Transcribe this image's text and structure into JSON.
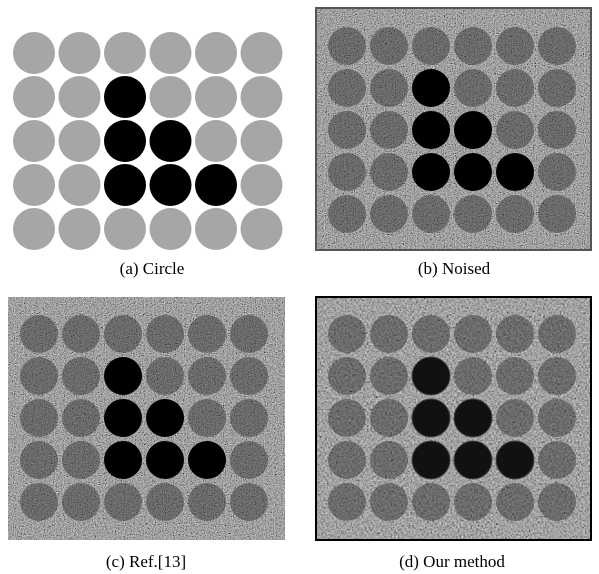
{
  "panels": [
    {
      "caption": "(a) Circle"
    },
    {
      "caption": "(b) Noised"
    },
    {
      "caption": "(c) Ref.[13]"
    },
    {
      "caption": "(d) Our method"
    }
  ]
}
